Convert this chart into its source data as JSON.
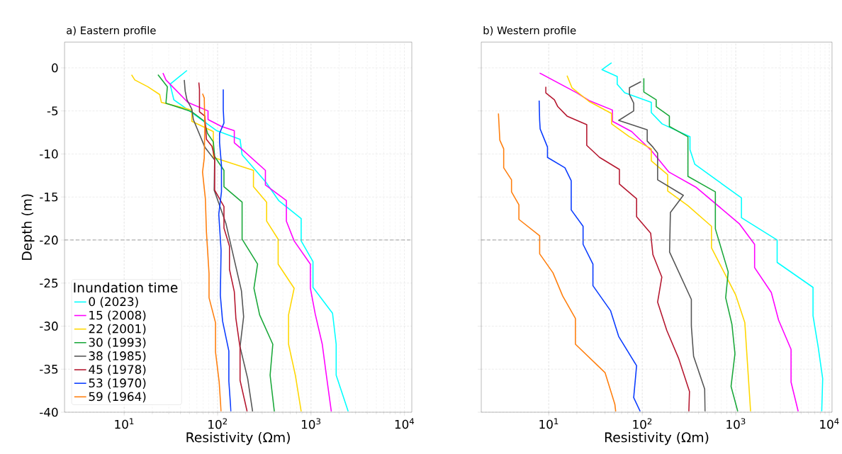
{
  "chart_data": [
    {
      "type": "line",
      "title": "a) Eastern profile",
      "xlabel": "Resistivity (Ωm)",
      "ylabel": "Depth (m)",
      "legend_title": "Inundation time",
      "legend": "bottom left",
      "grid": true,
      "log": "x",
      "line_style": "solid",
      "xlim": [
        2.3,
        12000
      ],
      "ylim": [
        -40,
        3
      ],
      "xticks": [
        {
          "value": 10,
          "label": "10$^{1}$"
        },
        {
          "value": 100,
          "label": "10$^{2}$"
        },
        {
          "value": 1000,
          "label": "10$^{3}$"
        },
        {
          "value": 10000,
          "label": "10$^{4}$"
        }
      ],
      "yticks": [
        0,
        -5,
        -10,
        -15,
        -20,
        -25,
        -30,
        -35,
        -40
      ],
      "ref_lines": [
        {
          "axis": "y",
          "value": -20,
          "color": "#808080",
          "line_style": "dashed"
        }
      ],
      "series": [
        {
          "name": "0 (2023)",
          "color": "#00ffff",
          "x": [
            47,
            31,
            34,
            53,
            98,
            174,
            183,
            330,
            450,
            785,
            785,
            1050,
            1050,
            1700,
            1860,
            1860,
            2500
          ],
          "values": [
            -0.3,
            -1.9,
            -3.7,
            -5.2,
            -7.3,
            -8.3,
            -10.1,
            -13.3,
            -15.4,
            -17.5,
            -20.1,
            -22.5,
            -25.5,
            -28.5,
            -32.1,
            -35.7,
            -39.9
          ]
        },
        {
          "name": "15 (2008)",
          "color": "#ff00ff",
          "x": [
            26,
            28,
            39,
            48,
            79,
            79,
            110,
            151,
            151,
            180,
            325,
            325,
            545,
            545,
            660,
            985,
            985,
            1110,
            1320,
            1460,
            1650
          ],
          "values": [
            -0.6,
            -1.4,
            -3.0,
            -4.0,
            -5.0,
            -6.0,
            -6.8,
            -7.3,
            -8.7,
            -9.4,
            -11.9,
            -13.6,
            -15.4,
            -17.8,
            -20.1,
            -22.8,
            -25.6,
            -28.6,
            -32.1,
            -35.7,
            -39.9
          ]
        },
        {
          "name": "22 (2001)",
          "color": "#ffd700",
          "x": [
            12,
            13,
            18,
            24,
            25,
            53,
            53,
            90,
            90,
            242,
            242,
            335,
            335,
            445,
            445,
            660,
            575,
            575,
            680,
            785
          ],
          "values": [
            -0.8,
            -1.4,
            -2.2,
            -3.1,
            -4.0,
            -4.9,
            -6.2,
            -7.4,
            -10.4,
            -11.9,
            -13.8,
            -15.6,
            -17.8,
            -19.9,
            -22.8,
            -25.6,
            -28.7,
            -32.1,
            -35.7,
            -39.9
          ]
        },
        {
          "name": "30 (1993)",
          "color": "#1aa83a",
          "x": [
            23,
            29,
            28,
            53,
            72,
            78,
            90,
            93,
            117,
            117,
            183,
            183,
            268,
            245,
            282,
            390,
            365,
            405
          ],
          "values": [
            -0.8,
            -2.2,
            -4.1,
            -5.1,
            -6.2,
            -7.6,
            -8.6,
            -10.3,
            -11.9,
            -13.8,
            -15.6,
            -19.9,
            -22.8,
            -25.6,
            -28.7,
            -32.1,
            -35.7,
            -39.9
          ]
        },
        {
          "name": "38 (1985)",
          "color": "#555555",
          "x": [
            44,
            45,
            47,
            53,
            55,
            73,
            93,
            92,
            123,
            180,
            190,
            174,
            210,
            237
          ],
          "values": [
            -1.4,
            -2.7,
            -3.7,
            -4.8,
            -6.0,
            -9.2,
            -10.7,
            -14.2,
            -18.1,
            -25.9,
            -28.9,
            -32.4,
            -36.1,
            -39.9
          ]
        },
        {
          "name": "45 (1978)",
          "color": "#b5172f",
          "x": [
            63,
            64,
            64,
            73,
            76,
            87,
            93,
            93,
            117,
            117,
            134,
            134,
            151,
            157,
            174,
            174,
            207
          ],
          "values": [
            -1.7,
            -2.5,
            -5.1,
            -5.6,
            -8.3,
            -9.1,
            -10.4,
            -14.2,
            -16.1,
            -18.6,
            -20.7,
            -23.4,
            -26.0,
            -29.1,
            -32.5,
            -36.3,
            -39.9
          ]
        },
        {
          "name": "53 (1970)",
          "color": "#0a3cff",
          "x": [
            115,
            115,
            117,
            105,
            105,
            110,
            110,
            103,
            109,
            107,
            113,
            132,
            132,
            139
          ],
          "values": [
            -2.5,
            -4.8,
            -6.4,
            -7.6,
            -8.7,
            -11.3,
            -14.4,
            -17.0,
            -21.2,
            -26.4,
            -29.4,
            -32.9,
            -36.4,
            -39.9
          ]
        },
        {
          "name": "59 (1964)",
          "color": "#ff7f0e",
          "x": [
            69,
            72,
            73,
            72,
            69,
            74,
            76,
            81,
            81,
            95,
            95,
            104,
            109
          ],
          "values": [
            -3.0,
            -3.5,
            -6.6,
            -10.5,
            -12.1,
            -15.2,
            -19.1,
            -23.9,
            -26.7,
            -29.6,
            -33.0,
            -36.5,
            -39.9
          ]
        }
      ]
    },
    {
      "type": "line",
      "title": "b) Western profile",
      "xlabel": "Resistivity (Ωm)",
      "grid": true,
      "log": "x",
      "line_style": "solid",
      "tick_labels": "x",
      "xlim": [
        1.9,
        10700
      ],
      "ylim": [
        -40,
        3
      ],
      "xticks": [
        {
          "value": 10,
          "label": "10$^{1}$"
        },
        {
          "value": 100,
          "label": "10$^{2}$"
        },
        {
          "value": 1000,
          "label": "10$^{3}$"
        },
        {
          "value": 10000,
          "label": "10$^{4}$"
        }
      ],
      "yticks": [
        0,
        -5,
        -10,
        -15,
        -20,
        -25,
        -30,
        -35,
        -40
      ],
      "ref_lines": [
        {
          "axis": "y",
          "value": -20,
          "color": "#808080",
          "line_style": "dashed"
        }
      ],
      "series": [
        {
          "color": "#00ffff",
          "x": [
            47,
            37,
            54,
            54,
            65,
            125,
            125,
            163,
            324,
            324,
            365,
            1150,
            1150,
            2770,
            2770,
            6700,
            6700,
            7600,
            8500,
            8300
          ],
          "values": [
            0.6,
            -0.2,
            -1.0,
            -1.9,
            -2.9,
            -4.0,
            -5.2,
            -6.5,
            -8.0,
            -9.5,
            -11.2,
            -15.1,
            -17.4,
            -20.0,
            -22.6,
            -25.5,
            -28.8,
            -32.4,
            -36.1,
            -39.9
          ]
        },
        {
          "color": "#ff00ff",
          "x": [
            8.0,
            20,
            27,
            48,
            48,
            77,
            125,
            193,
            380,
            1090,
            1590,
            1590,
            2400,
            2870,
            3900,
            3900,
            4650
          ],
          "values": [
            -0.6,
            -2.9,
            -3.8,
            -4.9,
            -6.2,
            -7.4,
            -9.6,
            -12.1,
            -13.9,
            -18.1,
            -20.5,
            -23.2,
            -26.1,
            -29.3,
            -32.7,
            -36.5,
            -39.9
          ]
        },
        {
          "color": "#ffd700",
          "x": [
            15.7,
            17.7,
            27,
            47,
            47,
            73,
            125,
            125,
            187,
            187,
            308,
            550,
            550,
            1000,
            1250,
            1440
          ],
          "values": [
            -0.9,
            -2.3,
            -3.9,
            -5.3,
            -6.5,
            -8.0,
            -9.4,
            -10.8,
            -12.4,
            -14.3,
            -16.0,
            -18.4,
            -20.9,
            -26.4,
            -29.6,
            -39.9
          ]
        },
        {
          "color": "#1aa83a",
          "x": [
            104,
            104,
            141,
            141,
            195,
            195,
            308,
            308,
            605,
            605,
            830,
            780,
            910,
            980,
            890,
            1050
          ],
          "values": [
            -1.2,
            -2.8,
            -3.7,
            -4.5,
            -5.6,
            -6.8,
            -8.0,
            -12.6,
            -14.4,
            -18.7,
            -23.7,
            -26.7,
            -29.8,
            -33.2,
            -37.0,
            -39.9
          ]
        },
        {
          "color": "#555555",
          "x": [
            97,
            73,
            73,
            81,
            81,
            56,
            113,
            113,
            130,
            146,
            146,
            275,
            200,
            196,
            335,
            335,
            354,
            465,
            470
          ],
          "values": [
            -1.6,
            -2.3,
            -3.1,
            -4.1,
            -5.0,
            -6.1,
            -7.2,
            -8.5,
            -9.2,
            -9.9,
            -13.0,
            -14.8,
            -16.8,
            -21.4,
            -26.9,
            -30.0,
            -33.5,
            -37.3,
            -39.9
          ]
        },
        {
          "color": "#b5172f",
          "x": [
            9.3,
            9.3,
            11.5,
            12.5,
            15.7,
            25.5,
            25.5,
            35,
            57,
            57,
            87,
            87,
            123,
            130,
            162,
            146,
            183,
            246,
            320,
            315
          ],
          "values": [
            -2.2,
            -2.9,
            -3.7,
            -4.5,
            -5.6,
            -6.6,
            -9.0,
            -10.4,
            -11.8,
            -13.5,
            -15.2,
            -17.3,
            -19.2,
            -21.7,
            -24.3,
            -27.2,
            -30.5,
            -33.8,
            -37.6,
            -39.9
          ]
        },
        {
          "color": "#0a3cff",
          "x": [
            7.9,
            8.0,
            8.1,
            9.7,
            9.7,
            14.9,
            17.4,
            17.4,
            23.3,
            23.3,
            29.7,
            29.7,
            45.8,
            56,
            87,
            81,
            95
          ],
          "values": [
            -3.8,
            -6.1,
            -7.1,
            -9.2,
            -10.4,
            -11.6,
            -13.1,
            -16.5,
            -18.4,
            -20.5,
            -22.8,
            -25.3,
            -28.2,
            -31.2,
            -34.6,
            -38.3,
            -39.9
          ]
        },
        {
          "color": "#ff7f0e",
          "x": [
            2.9,
            3.0,
            3.3,
            3.3,
            4.0,
            4.0,
            4.8,
            4.8,
            8.0,
            8.0,
            11.1,
            14.1,
            19.3,
            19.3,
            40,
            51,
            52
          ],
          "values": [
            -5.3,
            -8.4,
            -9.4,
            -11.6,
            -13.0,
            -14.4,
            -15.9,
            -17.6,
            -19.5,
            -21.6,
            -23.8,
            -26.5,
            -29.1,
            -32.1,
            -35.4,
            -39.1,
            -39.9
          ]
        }
      ]
    }
  ]
}
